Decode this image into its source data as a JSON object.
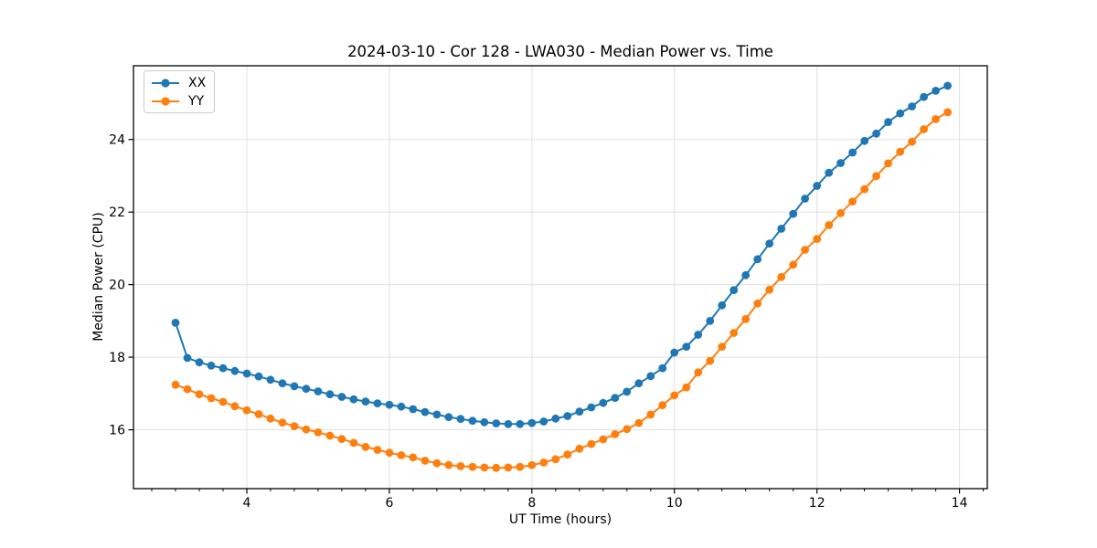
{
  "chart_data": {
    "type": "line",
    "title": "2024-03-10 - Cor 128 - LWA030 - Median Power vs. Time",
    "xlabel": "UT Time (hours)",
    "ylabel": "Median Power (CPU)",
    "xlim": [
      2.41,
      14.39
    ],
    "ylim": [
      14.38,
      26.03
    ],
    "xticks": [
      4,
      6,
      8,
      10,
      12,
      14
    ],
    "yticks": [
      16,
      18,
      20,
      22,
      24
    ],
    "minor_xtick_interval": 0.333,
    "grid": true,
    "grid_color": "#e0e0e0",
    "legend_position": "upper-left",
    "marker": "o",
    "x": [
      3.0,
      3.167,
      3.333,
      3.5,
      3.667,
      3.833,
      4.0,
      4.167,
      4.333,
      4.5,
      4.667,
      4.833,
      5.0,
      5.167,
      5.333,
      5.5,
      5.667,
      5.833,
      6.0,
      6.167,
      6.333,
      6.5,
      6.667,
      6.833,
      7.0,
      7.167,
      7.333,
      7.5,
      7.667,
      7.833,
      8.0,
      8.167,
      8.333,
      8.5,
      8.667,
      8.833,
      9.0,
      9.167,
      9.333,
      9.5,
      9.667,
      9.833,
      10.0,
      10.167,
      10.333,
      10.5,
      10.667,
      10.833,
      11.0,
      11.167,
      11.333,
      11.5,
      11.667,
      11.833,
      12.0,
      12.167,
      12.333,
      12.5,
      12.667,
      12.833,
      13.0,
      13.167,
      13.333,
      13.5,
      13.667,
      13.833
    ],
    "series": [
      {
        "name": "XX",
        "color": "#1f77b4",
        "values": [
          18.95,
          17.98,
          17.86,
          17.77,
          17.7,
          17.62,
          17.55,
          17.47,
          17.38,
          17.28,
          17.2,
          17.13,
          17.06,
          16.98,
          16.91,
          16.84,
          16.78,
          16.73,
          16.69,
          16.64,
          16.57,
          16.49,
          16.42,
          16.35,
          16.3,
          16.25,
          16.21,
          16.18,
          16.16,
          16.16,
          16.19,
          16.23,
          16.31,
          16.38,
          16.5,
          16.62,
          16.74,
          16.88,
          17.05,
          17.28,
          17.48,
          17.7,
          18.13,
          18.29,
          18.62,
          19.0,
          19.43,
          19.85,
          20.26,
          20.7,
          21.13,
          21.54,
          21.95,
          22.37,
          22.72,
          23.08,
          23.35,
          23.64,
          23.96,
          24.16,
          24.48,
          24.72,
          24.91,
          25.17,
          25.34,
          25.48
        ]
      },
      {
        "name": "YY",
        "color": "#ff7f0e",
        "values": [
          17.24,
          17.12,
          16.98,
          16.87,
          16.77,
          16.65,
          16.54,
          16.43,
          16.31,
          16.2,
          16.1,
          16.01,
          15.93,
          15.84,
          15.75,
          15.64,
          15.53,
          15.45,
          15.37,
          15.3,
          15.24,
          15.15,
          15.08,
          15.03,
          15.0,
          14.98,
          14.96,
          14.95,
          14.96,
          14.98,
          15.03,
          15.1,
          15.19,
          15.32,
          15.48,
          15.61,
          15.74,
          15.88,
          16.02,
          16.19,
          16.42,
          16.68,
          16.95,
          17.17,
          17.58,
          17.9,
          18.29,
          18.67,
          19.05,
          19.48,
          19.86,
          20.21,
          20.55,
          20.96,
          21.26,
          21.64,
          21.97,
          22.29,
          22.63,
          22.99,
          23.34,
          23.66,
          23.94,
          24.28,
          24.56,
          24.75
        ]
      }
    ]
  }
}
